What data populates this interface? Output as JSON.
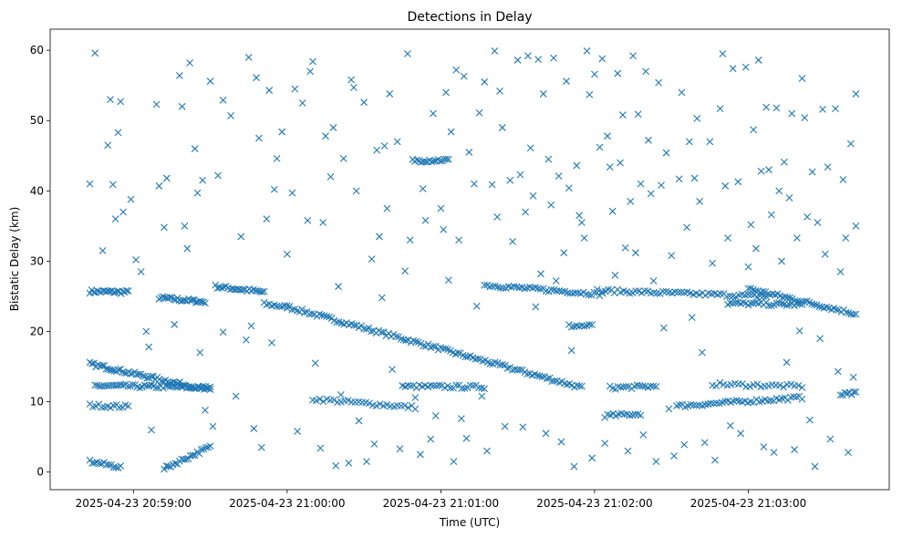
{
  "chart_data": {
    "type": "scatter",
    "title": "Detections in Delay",
    "xlabel": "Time (UTC)",
    "ylabel": "Bistatic Delay (km)",
    "x_origin": "2025-04-23 20:59:00",
    "x_units": "seconds from x_origin",
    "xlim": [
      -32.5,
      295
    ],
    "ylim": [
      -2.5,
      63
    ],
    "grid": false,
    "marker": "x",
    "color": "#1f77b4",
    "xticks": [
      {
        "value": 0,
        "label": "2025-04-23 20:59:00"
      },
      {
        "value": 60,
        "label": "2025-04-23 21:00:00"
      },
      {
        "value": 120,
        "label": "2025-04-23 21:01:00"
      },
      {
        "value": 180,
        "label": "2025-04-23 21:02:00"
      },
      {
        "value": 240,
        "label": "2025-04-23 21:03:00"
      }
    ],
    "yticks": [
      {
        "value": 0,
        "label": "0"
      },
      {
        "value": 10,
        "label": "10"
      },
      {
        "value": 20,
        "label": "20"
      },
      {
        "value": 30,
        "label": "30"
      },
      {
        "value": 40,
        "label": "40"
      },
      {
        "value": 50,
        "label": "50"
      },
      {
        "value": 60,
        "label": "60"
      }
    ],
    "tracks": [
      {
        "x0": -17,
        "y0": 25.7,
        "x1": -2,
        "y1": 25.6,
        "n": 22
      },
      {
        "x0": 10,
        "y0": 24.8,
        "x1": 28,
        "y1": 24.2,
        "n": 26
      },
      {
        "x0": 32,
        "y0": 26.4,
        "x1": 51,
        "y1": 25.6,
        "n": 24
      },
      {
        "x0": 51,
        "y0": 23.9,
        "x1": 60,
        "y1": 23.5,
        "n": 10
      },
      {
        "x0": 60,
        "y0": 23.5,
        "x1": 175,
        "y1": 12.0,
        "n": 120
      },
      {
        "x0": -17,
        "y0": 15.4,
        "x1": 30,
        "y1": 11.6,
        "n": 60
      },
      {
        "x0": -15,
        "y0": 12.3,
        "x1": 30,
        "y1": 12.0,
        "n": 50
      },
      {
        "x0": -17,
        "y0": 9.5,
        "x1": -2,
        "y1": 9.3,
        "n": 14
      },
      {
        "x0": 70,
        "y0": 10.4,
        "x1": 110,
        "y1": 9.2,
        "n": 30
      },
      {
        "x0": 105,
        "y0": 12.2,
        "x1": 137,
        "y1": 12.1,
        "n": 30
      },
      {
        "x0": 137,
        "y0": 26.6,
        "x1": 183,
        "y1": 25.3,
        "n": 45
      },
      {
        "x0": 183,
        "y0": 25.8,
        "x1": 247,
        "y1": 25.0,
        "n": 55
      },
      {
        "x0": 240,
        "y0": 26.1,
        "x1": 282,
        "y1": 22.5,
        "n": 45
      },
      {
        "x0": 232,
        "y0": 24.0,
        "x1": 261,
        "y1": 23.8,
        "n": 30
      },
      {
        "x0": 186,
        "y0": 12.0,
        "x1": 204,
        "y1": 12.2,
        "n": 18
      },
      {
        "x0": 184,
        "y0": 8.0,
        "x1": 198,
        "y1": 8.3,
        "n": 14
      },
      {
        "x0": 212,
        "y0": 9.4,
        "x1": 261,
        "y1": 10.6,
        "n": 45
      },
      {
        "x0": 226,
        "y0": 12.5,
        "x1": 261,
        "y1": 12.2,
        "n": 25
      },
      {
        "x0": -17,
        "y0": 1.5,
        "x1": -5,
        "y1": 0.7,
        "n": 14
      },
      {
        "x0": 12,
        "y0": 0.5,
        "x1": 30,
        "y1": 3.6,
        "n": 22
      },
      {
        "x0": 109,
        "y0": 44.3,
        "x1": 123,
        "y1": 44.4,
        "n": 18
      },
      {
        "x0": 170,
        "y0": 20.8,
        "x1": 179,
        "y1": 20.8,
        "n": 10
      },
      {
        "x0": 276,
        "y0": 11.0,
        "x1": 282,
        "y1": 11.2,
        "n": 8
      }
    ],
    "points": [
      [
        -17,
        41
      ],
      [
        -15,
        59.6
      ],
      [
        -12,
        31.5
      ],
      [
        -10,
        46.5
      ],
      [
        -9,
        53
      ],
      [
        -8,
        40.9
      ],
      [
        -7,
        36
      ],
      [
        -6,
        48.3
      ],
      [
        -5,
        52.7
      ],
      [
        -4,
        37
      ],
      [
        -1,
        38.8
      ],
      [
        1,
        30.2
      ],
      [
        3,
        28.5
      ],
      [
        5,
        20
      ],
      [
        6,
        17.8
      ],
      [
        7,
        6
      ],
      [
        9,
        52.3
      ],
      [
        10,
        40.7
      ],
      [
        12,
        34.8
      ],
      [
        13,
        41.8
      ],
      [
        16,
        21
      ],
      [
        18,
        56.4
      ],
      [
        19,
        52
      ],
      [
        20,
        35
      ],
      [
        21,
        31.8
      ],
      [
        22,
        58.2
      ],
      [
        24,
        46
      ],
      [
        25,
        39.7
      ],
      [
        26,
        17
      ],
      [
        27,
        41.5
      ],
      [
        28,
        8.8
      ],
      [
        30,
        55.6
      ],
      [
        31,
        6.5
      ],
      [
        33,
        42.2
      ],
      [
        35,
        19.9
      ],
      [
        35,
        52.9
      ],
      [
        38,
        50.7
      ],
      [
        40,
        10.8
      ],
      [
        42,
        33.5
      ],
      [
        44,
        18.8
      ],
      [
        45,
        59
      ],
      [
        46,
        20.8
      ],
      [
        47,
        6.2
      ],
      [
        48,
        56.1
      ],
      [
        49,
        47.5
      ],
      [
        50,
        3.5
      ],
      [
        52,
        36
      ],
      [
        53,
        54.3
      ],
      [
        54,
        18.4
      ],
      [
        55,
        40.2
      ],
      [
        56,
        44.6
      ],
      [
        58,
        48.4
      ],
      [
        60,
        31
      ],
      [
        62,
        39.7
      ],
      [
        63,
        54.5
      ],
      [
        64,
        5.8
      ],
      [
        66,
        52.5
      ],
      [
        68,
        35.8
      ],
      [
        69,
        57
      ],
      [
        70,
        58.4
      ],
      [
        71,
        15.5
      ],
      [
        73,
        3.4
      ],
      [
        74,
        35.5
      ],
      [
        75,
        47.8
      ],
      [
        77,
        42
      ],
      [
        78,
        49
      ],
      [
        79,
        0.9
      ],
      [
        80,
        26.4
      ],
      [
        81,
        11
      ],
      [
        82,
        44.6
      ],
      [
        84,
        1.3
      ],
      [
        85,
        55.8
      ],
      [
        86,
        54.7
      ],
      [
        87,
        40
      ],
      [
        88,
        7.3
      ],
      [
        90,
        52.6
      ],
      [
        91,
        1.5
      ],
      [
        93,
        30.3
      ],
      [
        94,
        4
      ],
      [
        95,
        45.8
      ],
      [
        96,
        33.5
      ],
      [
        97,
        24.8
      ],
      [
        98,
        46.4
      ],
      [
        99,
        37.5
      ],
      [
        100,
        53.8
      ],
      [
        101,
        14.6
      ],
      [
        103,
        47
      ],
      [
        104,
        3.3
      ],
      [
        106,
        28.6
      ],
      [
        107,
        59.5
      ],
      [
        108,
        33
      ],
      [
        110,
        10.6
      ],
      [
        112,
        2.5
      ],
      [
        113,
        40.3
      ],
      [
        114,
        35.8
      ],
      [
        116,
        4.7
      ],
      [
        117,
        51
      ],
      [
        118,
        8
      ],
      [
        120,
        37.5
      ],
      [
        121,
        34.5
      ],
      [
        122,
        54
      ],
      [
        123,
        27.3
      ],
      [
        124,
        48.4
      ],
      [
        125,
        1.5
      ],
      [
        126,
        57.2
      ],
      [
        127,
        33
      ],
      [
        128,
        7.6
      ],
      [
        129,
        56.3
      ],
      [
        130,
        4.8
      ],
      [
        131,
        45.5
      ],
      [
        133,
        41
      ],
      [
        134,
        23.6
      ],
      [
        135,
        51.1
      ],
      [
        136,
        10.8
      ],
      [
        137,
        55.5
      ],
      [
        138,
        3
      ],
      [
        140,
        40.9
      ],
      [
        141,
        59.9
      ],
      [
        142,
        36.3
      ],
      [
        143,
        54.2
      ],
      [
        144,
        49
      ],
      [
        145,
        6.5
      ],
      [
        147,
        41.5
      ],
      [
        148,
        32.8
      ],
      [
        150,
        58.6
      ],
      [
        151,
        42.3
      ],
      [
        152,
        6.4
      ],
      [
        153,
        37
      ],
      [
        154,
        59.2
      ],
      [
        155,
        46.1
      ],
      [
        156,
        39.3
      ],
      [
        157,
        23.5
      ],
      [
        158,
        58.7
      ],
      [
        159,
        28.2
      ],
      [
        160,
        53.8
      ],
      [
        161,
        5.5
      ],
      [
        162,
        44.5
      ],
      [
        163,
        38
      ],
      [
        164,
        58.9
      ],
      [
        165,
        27.2
      ],
      [
        166,
        42.1
      ],
      [
        167,
        4.3
      ],
      [
        168,
        31.2
      ],
      [
        169,
        55.6
      ],
      [
        170,
        40.4
      ],
      [
        171,
        17.3
      ],
      [
        172,
        0.8
      ],
      [
        173,
        43.6
      ],
      [
        174,
        36.5
      ],
      [
        175,
        35.5
      ],
      [
        176,
        33.3
      ],
      [
        177,
        59.9
      ],
      [
        178,
        53.7
      ],
      [
        179,
        2
      ],
      [
        180,
        56.6
      ],
      [
        181,
        26
      ],
      [
        182,
        46.2
      ],
      [
        183,
        58.8
      ],
      [
        184,
        4.1
      ],
      [
        185,
        47.8
      ],
      [
        186,
        43.4
      ],
      [
        187,
        37.1
      ],
      [
        188,
        28
      ],
      [
        189,
        56.7
      ],
      [
        190,
        44
      ],
      [
        191,
        50.8
      ],
      [
        192,
        31.9
      ],
      [
        193,
        3
      ],
      [
        194,
        38.5
      ],
      [
        195,
        59.2
      ],
      [
        196,
        31.2
      ],
      [
        197,
        50.9
      ],
      [
        198,
        41
      ],
      [
        199,
        5.3
      ],
      [
        200,
        57
      ],
      [
        201,
        47.2
      ],
      [
        202,
        39.6
      ],
      [
        203,
        27.2
      ],
      [
        204,
        1.5
      ],
      [
        205,
        55.4
      ],
      [
        206,
        40.8
      ],
      [
        207,
        20.5
      ],
      [
        208,
        45.4
      ],
      [
        209,
        9
      ],
      [
        210,
        30.8
      ],
      [
        211,
        2.3
      ],
      [
        213,
        41.7
      ],
      [
        214,
        54
      ],
      [
        215,
        3.9
      ],
      [
        216,
        34.8
      ],
      [
        217,
        47
      ],
      [
        218,
        22
      ],
      [
        219,
        41.8
      ],
      [
        220,
        50.3
      ],
      [
        221,
        38.5
      ],
      [
        222,
        17
      ],
      [
        223,
        4.2
      ],
      [
        225,
        47
      ],
      [
        226,
        29.7
      ],
      [
        227,
        1.7
      ],
      [
        229,
        51.7
      ],
      [
        230,
        59.5
      ],
      [
        231,
        40.7
      ],
      [
        232,
        33.3
      ],
      [
        233,
        6.6
      ],
      [
        234,
        57.4
      ],
      [
        236,
        41.3
      ],
      [
        237,
        5.5
      ],
      [
        239,
        57.6
      ],
      [
        240,
        29.2
      ],
      [
        241,
        35.2
      ],
      [
        242,
        48.7
      ],
      [
        243,
        31.8
      ],
      [
        244,
        58.6
      ],
      [
        245,
        42.8
      ],
      [
        246,
        3.6
      ],
      [
        247,
        51.9
      ],
      [
        248,
        43
      ],
      [
        249,
        36.6
      ],
      [
        250,
        2.8
      ],
      [
        251,
        51.8
      ],
      [
        252,
        40
      ],
      [
        253,
        30
      ],
      [
        254,
        44.1
      ],
      [
        255,
        15.6
      ],
      [
        256,
        39
      ],
      [
        257,
        51
      ],
      [
        258,
        3.2
      ],
      [
        259,
        33.3
      ],
      [
        260,
        20.1
      ],
      [
        261,
        56
      ],
      [
        262,
        50.4
      ],
      [
        263,
        36.3
      ],
      [
        264,
        7.4
      ],
      [
        265,
        42.7
      ],
      [
        266,
        0.8
      ],
      [
        267,
        35.5
      ],
      [
        268,
        19
      ],
      [
        269,
        51.6
      ],
      [
        270,
        31
      ],
      [
        271,
        43.4
      ],
      [
        272,
        4.7
      ],
      [
        274,
        51.7
      ],
      [
        275,
        14.3
      ],
      [
        276,
        28.5
      ],
      [
        277,
        41.6
      ],
      [
        278,
        33.3
      ],
      [
        279,
        2.8
      ],
      [
        280,
        46.7
      ],
      [
        281,
        13.5
      ],
      [
        282,
        53.8
      ],
      [
        282,
        35
      ]
    ]
  }
}
